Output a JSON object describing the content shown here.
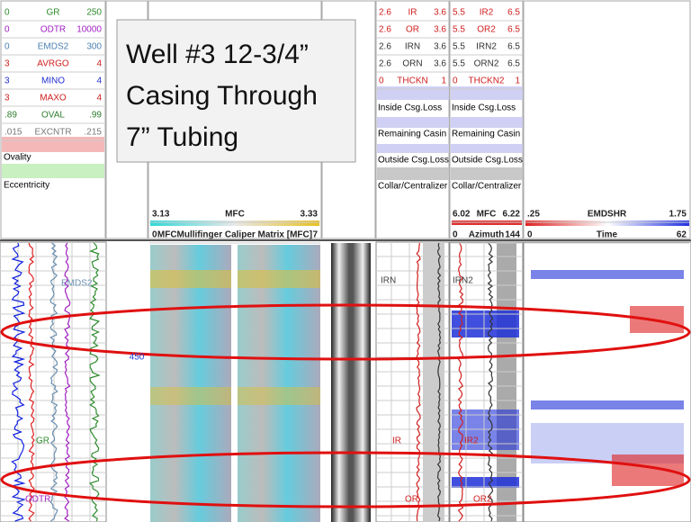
{
  "track1": {
    "rows": [
      {
        "min": "0",
        "name": "GR",
        "max": "250",
        "color": "#2e8b2e"
      },
      {
        "min": "0",
        "name": "ODTR",
        "max": "10000",
        "color": "#a020c0"
      },
      {
        "min": "0",
        "name": "EMDS2",
        "max": "300",
        "color": "#4a7fb0"
      },
      {
        "min": "3",
        "name": "AVRGO",
        "max": "4",
        "color": "#d02020"
      },
      {
        "min": "3",
        "name": "MINO",
        "max": "4",
        "color": "#2030d0"
      },
      {
        "min": "3",
        "name": "MAXO",
        "max": "4",
        "color": "#d02020"
      },
      {
        "min": ".89",
        "name": "OVAL",
        "max": ".99",
        "color": "#2e7d2e"
      },
      {
        "min": ".015",
        "name": "EXCNTR",
        "max": ".215",
        "color": "#777777"
      }
    ],
    "ovality": "Ovality",
    "eccentricity": "Eccentricity"
  },
  "title_box": {
    "lines": [
      "Well #3  12-3/4”",
      "Casing Through",
      "7” Tubing"
    ]
  },
  "mfc": {
    "scale": {
      "min": "3.13",
      "name": "MFC",
      "max": "3.33"
    },
    "matrix": {
      "min": "0",
      "name": "MFCMullifinger Caliper Matrix [MFC]",
      "max": "7"
    }
  },
  "ir_track": {
    "rows": [
      {
        "min": "2.6",
        "name": "IR",
        "max": "3.6",
        "color": "#d02020"
      },
      {
        "min": "2.6",
        "name": "OR",
        "max": "3.6",
        "color": "#d02020"
      },
      {
        "min": "2.6",
        "name": "IRN",
        "max": "3.6",
        "color": "#333333"
      },
      {
        "min": "2.6",
        "name": "ORN",
        "max": "3.6",
        "color": "#333333"
      },
      {
        "min": "0",
        "name": "THCKN",
        "max": "1",
        "color": "#d02020"
      }
    ],
    "labels": [
      "Inside Csg.Loss",
      "Remaining Casin",
      "Outside Csg.Loss",
      "Collar/Centralizer"
    ]
  },
  "ir2_track": {
    "rows": [
      {
        "min": "5.5",
        "name": "IR2",
        "max": "6.5",
        "color": "#d02020"
      },
      {
        "min": "5.5",
        "name": "OR2",
        "max": "6.5",
        "color": "#d02020"
      },
      {
        "min": "5.5",
        "name": "IRN2",
        "max": "6.5",
        "color": "#333333"
      },
      {
        "min": "5.5",
        "name": "ORN2",
        "max": "6.5",
        "color": "#333333"
      },
      {
        "min": "0",
        "name": "THCKN2",
        "max": "1",
        "color": "#d02020"
      }
    ],
    "labels": [
      "Inside Csg.Loss",
      "Remaining Casin",
      "Outside Csg.Loss",
      "Collar/Centralizer"
    ],
    "mfc": {
      "min": "6.02",
      "name": "MFC",
      "max": "6.22"
    },
    "azimuth": {
      "min": "0",
      "name": "Azimuth",
      "max": "144"
    }
  },
  "emdshr": {
    "scale": {
      "min": ".25",
      "name": "EMDSHR",
      "max": "1.75"
    },
    "time": {
      "min": "0",
      "name": "Time",
      "max": "62"
    }
  },
  "depth": "450",
  "curve_labels": [
    {
      "text": "EMDS2",
      "color": "#6a8fb0"
    },
    {
      "text": "GR",
      "color": "#2e8b2e"
    },
    {
      "text": "ODTR",
      "color": "#a020c0"
    },
    {
      "text": "IRN",
      "color": "#444444"
    },
    {
      "text": "IRN2",
      "color": "#444444"
    },
    {
      "text": "IR",
      "color": "#d02020"
    },
    {
      "text": "IR2",
      "color": "#d02020"
    },
    {
      "text": "OR",
      "color": "#d02020"
    },
    {
      "text": "OR2",
      "color": "#d02020"
    }
  ]
}
